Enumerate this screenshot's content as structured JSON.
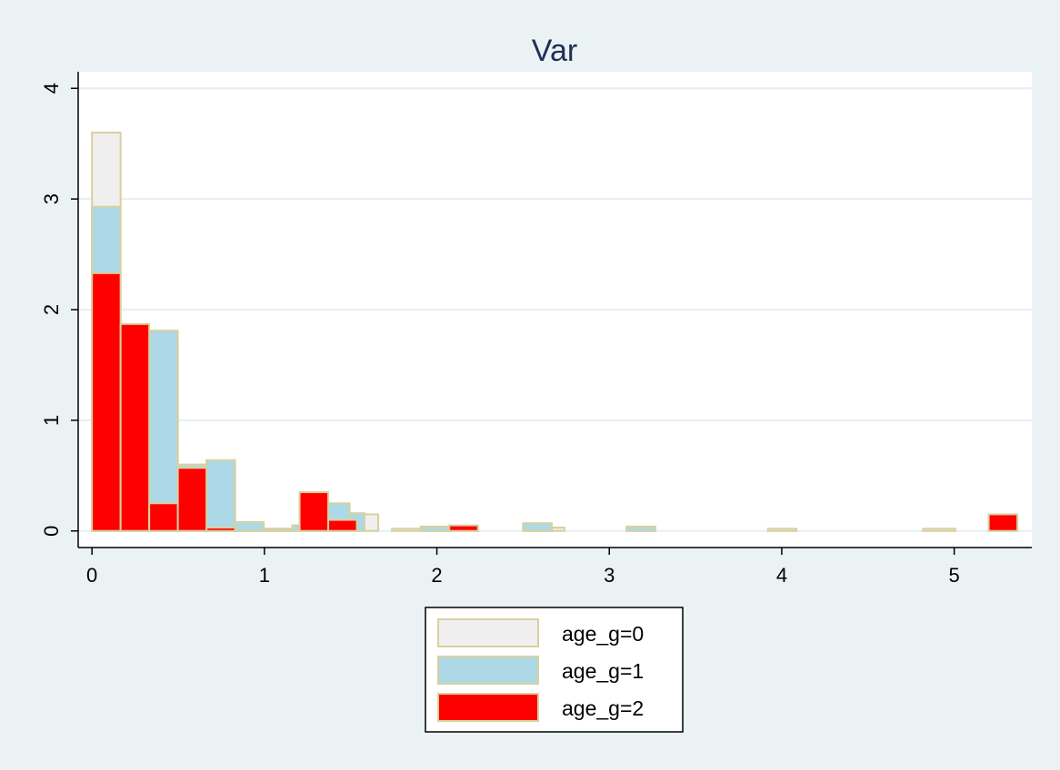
{
  "chart_data": {
    "type": "bar",
    "title": "Var",
    "xlabel": "",
    "ylabel": "",
    "xlim": [
      -0.08,
      5.45
    ],
    "ylim": [
      -0.15,
      4.15
    ],
    "xticks": [
      "0",
      "1",
      "2",
      "3",
      "4",
      "5"
    ],
    "yticks": [
      "0",
      "1",
      "2",
      "3",
      "4"
    ],
    "grid": "horizontal",
    "legend_position": "bottom",
    "bin_width": 0.166,
    "series": [
      {
        "name": "age_g=0",
        "color": "#efefef",
        "bins": [
          {
            "x0": 0.0,
            "x1": 0.166,
            "y": 3.6
          },
          {
            "x0": 0.166,
            "x1": 0.332,
            "y": 1.68
          },
          {
            "x0": 0.332,
            "x1": 0.498,
            "y": 1.7
          },
          {
            "x0": 0.498,
            "x1": 0.664,
            "y": 0.56
          },
          {
            "x0": 0.664,
            "x1": 0.83,
            "y": 0.6
          },
          {
            "x0": 0.83,
            "x1": 0.996,
            "y": 0.06
          },
          {
            "x0": 0.996,
            "x1": 1.162,
            "y": 0.02
          },
          {
            "x0": 1.162,
            "x1": 1.328,
            "y": 0.05
          },
          {
            "x0": 1.328,
            "x1": 1.494,
            "y": 0.23
          },
          {
            "x0": 1.494,
            "x1": 1.66,
            "y": 0.15
          },
          {
            "x0": 1.74,
            "x1": 1.906,
            "y": 0.02
          },
          {
            "x0": 1.906,
            "x1": 2.072,
            "y": 0.02
          },
          {
            "x0": 2.072,
            "x1": 2.238,
            "y": 0.02
          },
          {
            "x0": 2.5,
            "x1": 2.666,
            "y": 0.06
          },
          {
            "x0": 2.666,
            "x1": 2.74,
            "y": 0.03
          },
          {
            "x0": 3.1,
            "x1": 3.266,
            "y": 0.03
          },
          {
            "x0": 3.92,
            "x1": 4.086,
            "y": 0.02
          },
          {
            "x0": 4.82,
            "x1": 5.006,
            "y": 0.02
          }
        ]
      },
      {
        "name": "age_g=1",
        "color": "#add8e6",
        "bins": [
          {
            "x0": 0.0,
            "x1": 0.166,
            "y": 2.93
          },
          {
            "x0": 0.166,
            "x1": 0.332,
            "y": 1.7
          },
          {
            "x0": 0.332,
            "x1": 0.498,
            "y": 1.81
          },
          {
            "x0": 0.498,
            "x1": 0.664,
            "y": 0.6
          },
          {
            "x0": 0.664,
            "x1": 0.83,
            "y": 0.64
          },
          {
            "x0": 0.83,
            "x1": 0.996,
            "y": 0.08
          },
          {
            "x0": 0.996,
            "x1": 1.162,
            "y": 0.02
          },
          {
            "x0": 1.162,
            "x1": 1.328,
            "y": 0.05
          },
          {
            "x0": 1.328,
            "x1": 1.494,
            "y": 0.25
          },
          {
            "x0": 1.494,
            "x1": 1.58,
            "y": 0.16
          },
          {
            "x0": 1.906,
            "x1": 2.072,
            "y": 0.04
          },
          {
            "x0": 2.5,
            "x1": 2.666,
            "y": 0.07
          },
          {
            "x0": 3.1,
            "x1": 3.266,
            "y": 0.04
          }
        ]
      },
      {
        "name": "age_g=2",
        "color": "#ff0000",
        "bins": [
          {
            "x0": 0.0,
            "x1": 0.166,
            "y": 2.33
          },
          {
            "x0": 0.166,
            "x1": 0.332,
            "y": 1.87
          },
          {
            "x0": 0.332,
            "x1": 0.498,
            "y": 0.25
          },
          {
            "x0": 0.498,
            "x1": 0.664,
            "y": 0.57
          },
          {
            "x0": 0.664,
            "x1": 0.83,
            "y": 0.03
          },
          {
            "x0": 1.204,
            "x1": 1.37,
            "y": 0.35
          },
          {
            "x0": 1.37,
            "x1": 1.536,
            "y": 0.1
          },
          {
            "x0": 2.072,
            "x1": 2.238,
            "y": 0.05
          },
          {
            "x0": 5.2,
            "x1": 5.366,
            "y": 0.15
          }
        ]
      }
    ]
  }
}
